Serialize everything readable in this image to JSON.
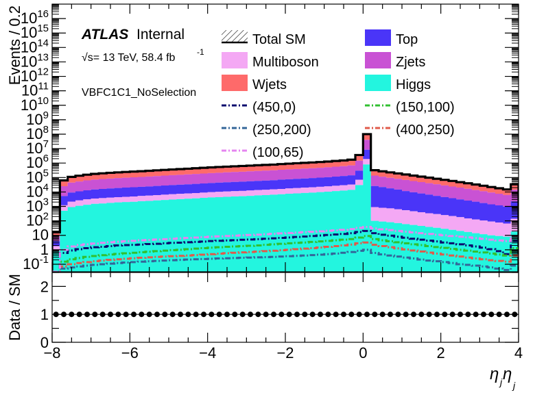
{
  "chart_data": [
    {
      "type": "histogram",
      "panel": "main",
      "ylabel": "Events / 0.2",
      "yscale": "log",
      "ylim": [
        0.03,
        100000000000000000
      ],
      "xlim": [
        -8,
        4
      ],
      "x_ticks": [
        -8,
        -6,
        -4,
        -2,
        0,
        2,
        4
      ],
      "y_tick_labels": [
        "10^-1",
        "1",
        "10",
        "10^2",
        "10^3",
        "10^4",
        "10^5",
        "10^6",
        "10^7",
        "10^8",
        "10^9",
        "10^10",
        "10^11",
        "10^12",
        "10^13",
        "10^14",
        "10^15",
        "10^16"
      ],
      "y_tick_values": [
        0.1,
        1,
        10,
        100,
        1000,
        10000,
        100000,
        1000000,
        10000000,
        100000000,
        1000000000,
        10000000000,
        100000000000,
        1000000000000,
        10000000000000,
        100000000000000,
        1000000000000000,
        10000000000000000
      ],
      "annotations": {
        "atlas": "ATLAS",
        "internal": "Internal",
        "energy": "√s= 13 TeV, 58.4 fb",
        "energy_exp": "-1",
        "selection": "VBFC1C1_NoSelection"
      },
      "legend_position": "top",
      "bin_edges": [
        -8.0,
        -7.8,
        -7.6,
        -7.4,
        -7.2,
        -7.0,
        -6.8,
        -6.6,
        -6.4,
        -6.2,
        -6.0,
        -5.8,
        -5.6,
        -5.4,
        -5.2,
        -5.0,
        -4.8,
        -4.6,
        -4.4,
        -4.2,
        -4.0,
        -3.8,
        -3.6,
        -3.4,
        -3.2,
        -3.0,
        -2.8,
        -2.6,
        -2.4,
        -2.2,
        -2.0,
        -1.8,
        -1.6,
        -1.4,
        -1.2,
        -1.0,
        -0.8,
        -0.6,
        -0.4,
        -0.2,
        0.0,
        0.2,
        0.4,
        0.6,
        0.8,
        1.0,
        1.2,
        1.4,
        1.6,
        1.8,
        2.0,
        2.2,
        2.4,
        2.6,
        2.8,
        3.0,
        3.2,
        3.4,
        3.6,
        3.8,
        4.0
      ],
      "stack": [
        {
          "name": "Higgs",
          "color": "#23f5df",
          "values": [
            0.8,
            500,
            900,
            1100,
            1300,
            1500,
            1600,
            1750,
            1900,
            2000,
            2100,
            2300,
            2400,
            2600,
            2800,
            3000,
            3200,
            3400,
            3600,
            3900,
            4200,
            4400,
            4600,
            4900,
            5100,
            5400,
            5800,
            6100,
            6500,
            7000,
            7500,
            8000,
            8500,
            9000,
            9800,
            10500,
            11500,
            12500,
            14000,
            30000,
            800000,
            100,
            90,
            80,
            70,
            60,
            52,
            45,
            38,
            33,
            28,
            24,
            20,
            17,
            14,
            12,
            10,
            9,
            8,
            18
          ]
        },
        {
          "name": "Multiboson",
          "color": "#f4a8f4",
          "values": [
            1,
            700,
            1250,
            1500,
            1750,
            2000,
            2150,
            2300,
            2500,
            2650,
            2800,
            3000,
            3200,
            3400,
            3700,
            4000,
            4200,
            4500,
            4800,
            5100,
            5500,
            5800,
            6100,
            6500,
            6800,
            7200,
            7700,
            8100,
            8600,
            9300,
            10000,
            10600,
            11300,
            12000,
            13000,
            14000,
            15300,
            16700,
            18700,
            40000,
            1100000,
            800,
            720,
            650,
            560,
            480,
            410,
            350,
            300,
            260,
            220,
            190,
            160,
            130,
            110,
            95,
            80,
            68,
            58,
            120
          ]
        },
        {
          "name": "Top",
          "color": "#4a35f8",
          "values": [
            2,
            4000,
            7000,
            8500,
            10000,
            11500,
            12500,
            13500,
            14500,
            15500,
            16500,
            17500,
            18500,
            20000,
            21500,
            23000,
            24500,
            26000,
            28000,
            30000,
            32000,
            34000,
            36000,
            38000,
            40000,
            42500,
            45000,
            47500,
            50000,
            55000,
            58000,
            62000,
            66000,
            70000,
            75000,
            81000,
            89000,
            97000,
            109000,
            230000,
            6500000,
            25000,
            21000,
            17000,
            14000,
            11000,
            9000,
            7500,
            6200,
            5100,
            4200,
            3500,
            2900,
            2400,
            2000,
            1600,
            1300,
            1100,
            900,
            2100
          ]
        },
        {
          "name": "Zjets",
          "color": "#c952d4",
          "values": [
            5,
            20000,
            35000,
            42000,
            50000,
            57000,
            62000,
            67000,
            72000,
            77000,
            82000,
            87000,
            93000,
            100000,
            107000,
            115000,
            122000,
            130000,
            140000,
            150000,
            160000,
            170000,
            180000,
            190000,
            200000,
            212000,
            225000,
            237000,
            250000,
            270000,
            290000,
            310000,
            330000,
            350000,
            375000,
            405000,
            445000,
            485000,
            545000,
            1150000,
            32000000,
            110000,
            92000,
            78000,
            66000,
            56000,
            47000,
            40000,
            34000,
            29000,
            24000,
            20000,
            17000,
            14000,
            11500,
            9500,
            7800,
            6400,
            5200,
            12000
          ]
        },
        {
          "name": "Wjets",
          "color": "#fe6a6a",
          "values": [
            8,
            38000,
            67000,
            80000,
            94000,
            107000,
            117000,
            126000,
            135000,
            145000,
            154000,
            163000,
            175000,
            188000,
            201000,
            216000,
            229000,
            244000,
            263000,
            282000,
            301000,
            320000,
            338000,
            357000,
            376000,
            398000,
            423000,
            445000,
            470000,
            508000,
            545000,
            583000,
            620000,
            658000,
            705000,
            761000,
            836000,
            912000,
            1025000,
            2160000,
            60000000,
            185000,
            155000,
            131000,
            111000,
            94000,
            79000,
            67000,
            57000,
            48000,
            40000,
            34000,
            28000,
            23000,
            19000,
            16000,
            13000,
            10500,
            8600,
            20000
          ]
        }
      ],
      "total_sm": {
        "name": "Total SM",
        "values": [
          16,
          63200,
          111000,
          133000,
          157000,
          179000,
          195000,
          211000,
          227000,
          243000,
          257000,
          273000,
          292000,
          315000,
          336000,
          361000,
          383000,
          408000,
          440000,
          471000,
          502000,
          534000,
          565000,
          597000,
          628000,
          665000,
          707000,
          744000,
          785000,
          849000,
          911000,
          974000,
          1036000,
          1099000,
          1178000,
          1271000,
          1397000,
          1524000,
          1712000,
          3610000,
          100400000,
          321000,
          269000,
          227000,
          192000,
          162000,
          136000,
          115000,
          98000,
          82000,
          69000,
          58000,
          48000,
          40000,
          33000,
          27000,
          22000,
          18000,
          15000,
          34000
        ]
      },
      "signals": [
        {
          "name": "(450,0)",
          "color": "#0b0b6e",
          "dash": "dashdot",
          "values": [
            0.03,
            0.6,
            0.9,
            1.1,
            1.3,
            1.5,
            1.6,
            1.8,
            2.0,
            2.1,
            2.2,
            2.3,
            2.5,
            2.6,
            2.8,
            3.0,
            3.1,
            3.3,
            3.5,
            3.7,
            4.0,
            4.2,
            4.4,
            4.6,
            4.9,
            5.1,
            5.4,
            5.8,
            6.2,
            6.6,
            7.1,
            7.7,
            8.3,
            9.0,
            9.7,
            10.5,
            11.5,
            12.5,
            14.0,
            17.0,
            20.0,
            14.0,
            11.0,
            9.5,
            8.0,
            6.8,
            5.8,
            5.0,
            4.3,
            3.8,
            3.2,
            2.8,
            2.4,
            2.0,
            1.7,
            1.4,
            1.1,
            0.8,
            0.5,
            4.0
          ]
        },
        {
          "name": "(150,100)",
          "color": "#30c030",
          "dash": "dashdot",
          "values": [
            0.03,
            0.15,
            0.22,
            0.27,
            0.32,
            0.37,
            0.42,
            0.47,
            0.52,
            0.57,
            0.62,
            0.68,
            0.74,
            0.8,
            0.87,
            0.94,
            1.0,
            1.1,
            1.2,
            1.3,
            1.4,
            1.5,
            1.6,
            1.7,
            1.8,
            1.9,
            2.0,
            2.2,
            2.4,
            2.6,
            2.8,
            3.0,
            3.2,
            3.5,
            3.8,
            4.1,
            4.5,
            5.0,
            5.5,
            7.0,
            9.0,
            5.5,
            4.5,
            3.9,
            3.3,
            2.8,
            2.4,
            2.1,
            1.8,
            1.55,
            1.35,
            1.15,
            1.0,
            0.87,
            0.75,
            0.65,
            0.55,
            0.47,
            0.4,
            1.3
          ]
        },
        {
          "name": "(250,200)",
          "color": "#336699",
          "dash": "dashdot",
          "values": [
            0.03,
            0.05,
            0.06,
            0.07,
            0.08,
            0.09,
            0.1,
            0.11,
            0.12,
            0.13,
            0.14,
            0.15,
            0.16,
            0.17,
            0.18,
            0.19,
            0.2,
            0.21,
            0.22,
            0.23,
            0.24,
            0.25,
            0.26,
            0.27,
            0.28,
            0.29,
            0.3,
            0.31,
            0.32,
            0.34,
            0.36,
            0.38,
            0.4,
            0.43,
            0.46,
            0.5,
            0.55,
            0.62,
            0.7,
            0.85,
            1.0,
            0.6,
            0.48,
            0.4,
            0.34,
            0.29,
            0.25,
            0.21,
            0.18,
            0.16,
            0.14,
            0.12,
            0.1,
            0.09,
            0.08,
            0.07,
            0.06,
            0.05,
            0.04,
            0.08
          ]
        },
        {
          "name": "(400,250)",
          "color": "#e05a4a",
          "dash": "dashdot",
          "values": [
            0.03,
            0.07,
            0.1,
            0.12,
            0.14,
            0.16,
            0.18,
            0.2,
            0.22,
            0.24,
            0.26,
            0.28,
            0.3,
            0.32,
            0.34,
            0.36,
            0.38,
            0.4,
            0.43,
            0.46,
            0.5,
            0.54,
            0.58,
            0.62,
            0.66,
            0.7,
            0.75,
            0.8,
            0.86,
            0.93,
            1.0,
            1.1,
            1.2,
            1.3,
            1.45,
            1.6,
            1.8,
            2.0,
            2.3,
            2.8,
            3.2,
            2.2,
            1.8,
            1.5,
            1.25,
            1.05,
            0.9,
            0.76,
            0.64,
            0.55,
            0.47,
            0.4,
            0.34,
            0.29,
            0.25,
            0.22,
            0.19,
            0.17,
            0.15,
            0.4
          ]
        },
        {
          "name": "(100,65)",
          "color": "#e584f0",
          "dash": "dashdot",
          "values": [
            0.03,
            1.0,
            1.7,
            2.1,
            2.4,
            2.7,
            3.0,
            3.3,
            3.6,
            3.9,
            4.2,
            4.5,
            4.8,
            5.1,
            5.4,
            5.8,
            6.2,
            6.6,
            7.0,
            7.5,
            8.0,
            8.5,
            9.0,
            9.5,
            10.0,
            10.5,
            11.2,
            12.0,
            12.8,
            13.6,
            14.5,
            15.5,
            16.5,
            17.5,
            19.0,
            20.5,
            22.0,
            24.0,
            27.0,
            33.0,
            38.0,
            30.0,
            26.0,
            23.0,
            20.0,
            18.0,
            16.0,
            14.0,
            12.5,
            11.0,
            10.0,
            9.0,
            8.0,
            7.2,
            6.4,
            5.7,
            5.0,
            4.4,
            4.0,
            9.0
          ]
        }
      ]
    },
    {
      "type": "scatter",
      "panel": "ratio",
      "ylabel": "Data / SM",
      "xlabel": "η_j η_j",
      "xlabel_main": "η",
      "xlabel_sub1": "j",
      "xlabel_sub2": "j",
      "xlim": [
        -8,
        4
      ],
      "ylim": [
        0,
        2.5
      ],
      "y_ticks": [
        0,
        1,
        2
      ],
      "x_tick_labels": [
        "−8",
        "−6",
        "−4",
        "−2",
        "0",
        "2",
        "4"
      ],
      "ratio_value": 1
    }
  ]
}
